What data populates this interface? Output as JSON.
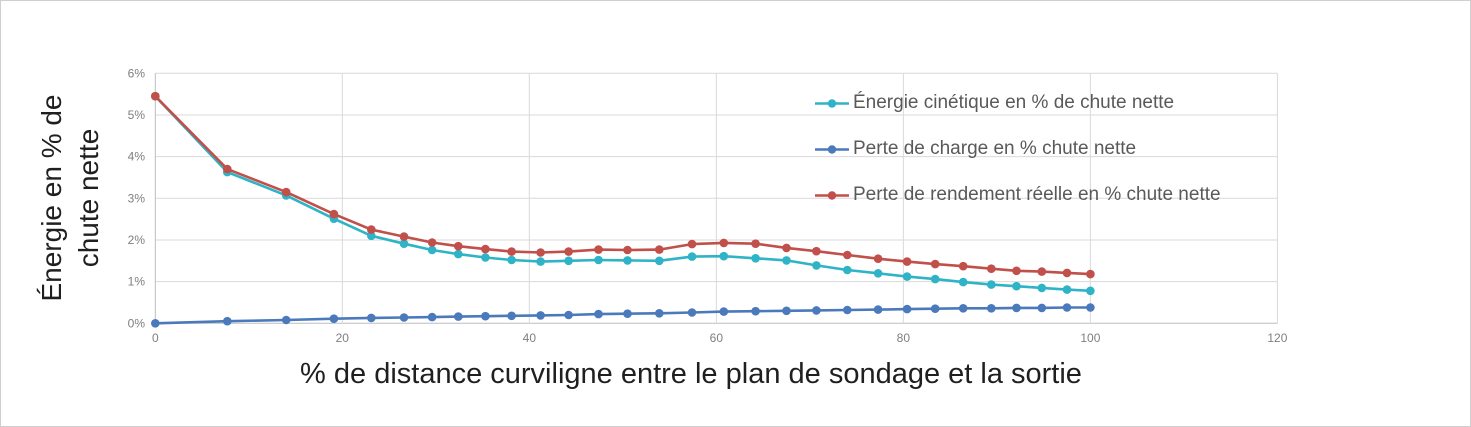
{
  "chart_data": {
    "type": "line",
    "title": "",
    "xlabel": "% de distance curviligne entre le plan de sondage et la sortie",
    "ylabel": "Énergie en % de chute nette",
    "ylabel_lines": [
      "Énergie en % de",
      "chute nette"
    ],
    "xlim": [
      0,
      120
    ],
    "ylim": [
      0,
      6
    ],
    "x_ticks": [
      0,
      20,
      40,
      60,
      80,
      100,
      120
    ],
    "y_ticks": [
      0,
      1,
      2,
      3,
      4,
      5,
      6
    ],
    "y_tick_labels": [
      "0%",
      "1%",
      "2%",
      "3%",
      "4%",
      "5%",
      "6%"
    ],
    "grid": true,
    "legend_position": "top-right-inside",
    "x": [
      0,
      7.7,
      14,
      19.1,
      23.1,
      26.6,
      29.6,
      32.4,
      35.3,
      38.1,
      41.2,
      44.2,
      47.4,
      50.5,
      53.9,
      57.4,
      60.8,
      64.2,
      67.5,
      70.7,
      74.0,
      77.3,
      80.4,
      83.4,
      86.4,
      89.4,
      92.1,
      94.8,
      97.5,
      100
    ],
    "series": [
      {
        "name": "Énergie cinétique en % de chute nette",
        "color": "#2fb3c6",
        "values": [
          5.45,
          3.63,
          3.07,
          2.51,
          2.1,
          1.91,
          1.76,
          1.66,
          1.58,
          1.52,
          1.48,
          1.5,
          1.52,
          1.51,
          1.5,
          1.6,
          1.61,
          1.56,
          1.51,
          1.39,
          1.28,
          1.2,
          1.12,
          1.06,
          0.99,
          0.93,
          0.89,
          0.85,
          0.81,
          0.78
        ]
      },
      {
        "name": "Perte de charge en % chute nette",
        "color": "#4a7abc",
        "values": [
          0.0,
          0.05,
          0.08,
          0.11,
          0.13,
          0.14,
          0.15,
          0.16,
          0.17,
          0.18,
          0.19,
          0.2,
          0.22,
          0.23,
          0.24,
          0.26,
          0.28,
          0.29,
          0.3,
          0.31,
          0.32,
          0.33,
          0.34,
          0.35,
          0.36,
          0.36,
          0.37,
          0.37,
          0.38,
          0.38
        ]
      },
      {
        "name": "Perte de rendement réelle en % chute nette",
        "color": "#c14f4a",
        "values": [
          5.45,
          3.7,
          3.15,
          2.62,
          2.25,
          2.08,
          1.94,
          1.85,
          1.78,
          1.72,
          1.7,
          1.72,
          1.77,
          1.76,
          1.77,
          1.9,
          1.93,
          1.91,
          1.81,
          1.73,
          1.64,
          1.55,
          1.48,
          1.42,
          1.37,
          1.31,
          1.26,
          1.24,
          1.21,
          1.18
        ]
      }
    ]
  },
  "colors": {
    "gridline": "#d9d9d9",
    "axis_line": "#bdbdbd",
    "tick_text": "#7f7f7f",
    "legend_text": "#595959",
    "axis_title_text": "#1f1f1f",
    "background": "#ffffff",
    "border": "#cfcfcf"
  }
}
